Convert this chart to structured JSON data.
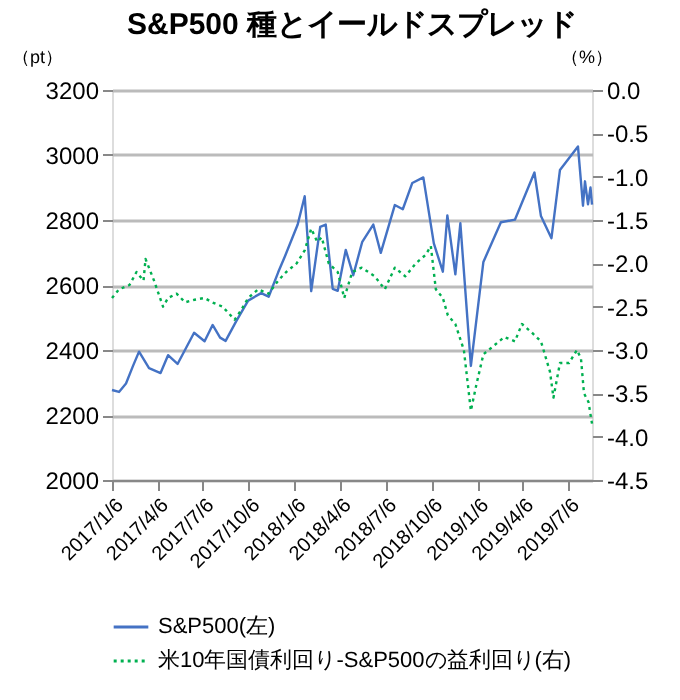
{
  "chart_data": {
    "type": "line",
    "title": "S&P500 種とイールドスプレッド",
    "ylabel": "（pt）",
    "y2label": "（%）",
    "xlim": [
      "2017-01-06",
      "2019-08-23"
    ],
    "xticks": [
      {
        "value": "2017-01-06",
        "label": "2017/1/6"
      },
      {
        "value": "2017-04-06",
        "label": "2017/4/6"
      },
      {
        "value": "2017-07-06",
        "label": "2017/7/6"
      },
      {
        "value": "2017-10-06",
        "label": "2017/10/6"
      },
      {
        "value": "2018-01-06",
        "label": "2018/1/6"
      },
      {
        "value": "2018-04-06",
        "label": "2018/4/6"
      },
      {
        "value": "2018-07-06",
        "label": "2018/7/6"
      },
      {
        "value": "2018-10-06",
        "label": "2018/10/6"
      },
      {
        "value": "2019-01-06",
        "label": "2019/1/6"
      },
      {
        "value": "2019-04-06",
        "label": "2019/4/6"
      },
      {
        "value": "2019-07-06",
        "label": "2019/7/6"
      }
    ],
    "ylim": [
      2000,
      3200
    ],
    "yticks": [
      2000,
      2200,
      2400,
      2600,
      2800,
      3000,
      3200
    ],
    "y2lim": [
      -4.5,
      0
    ],
    "y2ticks": [
      {
        "value": -4.5,
        "label": "-4.5"
      },
      {
        "value": -4,
        "label": "-4.0"
      },
      {
        "value": -3.5,
        "label": "-3.5"
      },
      {
        "value": -3,
        "label": "-3.0"
      },
      {
        "value": -2.5,
        "label": "-2.5"
      },
      {
        "value": -2,
        "label": "-2.0"
      },
      {
        "value": -1.5,
        "label": "-1.5"
      },
      {
        "value": -1,
        "label": "-1.0"
      },
      {
        "value": -0.5,
        "label": "-0.5"
      },
      {
        "value": 0,
        "label": "0.0"
      }
    ],
    "grid": "y",
    "legend": "bottom",
    "series": [
      {
        "name": "S&P500(左)",
        "color": "#4472c4",
        "line_style": "solid",
        "x": [
          "2017-01-06",
          "2017-01-20",
          "2017-02-03",
          "2017-02-17",
          "2017-03-01",
          "2017-03-21",
          "2017-04-13",
          "2017-04-28",
          "2017-05-17",
          "2017-06-19",
          "2017-07-10",
          "2017-07-26",
          "2017-08-10",
          "2017-08-21",
          "2017-09-11",
          "2017-10-05",
          "2017-10-31",
          "2017-11-15",
          "2017-12-04",
          "2017-12-18",
          "2018-01-12",
          "2018-01-26",
          "2018-02-08",
          "2018-02-26",
          "2018-03-09",
          "2018-03-23",
          "2018-04-02",
          "2018-04-18",
          "2018-05-03",
          "2018-05-21",
          "2018-06-12",
          "2018-06-27",
          "2018-07-25",
          "2018-08-10",
          "2018-08-29",
          "2018-09-20",
          "2018-10-11",
          "2018-10-29",
          "2018-11-07",
          "2018-11-23",
          "2018-12-03",
          "2018-12-24",
          "2019-01-18",
          "2019-02-22",
          "2019-03-22",
          "2019-04-30",
          "2019-05-13",
          "2019-06-03",
          "2019-06-20",
          "2019-07-26",
          "2019-08-05",
          "2019-08-09",
          "2019-08-15",
          "2019-08-20",
          "2019-08-23"
        ],
        "values": [
          2277,
          2271,
          2297,
          2351,
          2395,
          2344,
          2329,
          2384,
          2357,
          2453,
          2427,
          2477,
          2438,
          2428,
          2488,
          2552,
          2575,
          2564,
          2639,
          2690,
          2786,
          2873,
          2581,
          2779,
          2786,
          2588,
          2582,
          2708,
          2630,
          2733,
          2786,
          2699,
          2846,
          2833,
          2914,
          2931,
          2728,
          2641,
          2814,
          2633,
          2790,
          2351,
          2671,
          2793,
          2801,
          2946,
          2812,
          2744,
          2954,
          3026,
          2844,
          2919,
          2848,
          2900,
          2847
        ]
      },
      {
        "name": "米10年国債利回り-S&P500の益利回り(右)",
        "color": "#00b050",
        "line_style": "dotted",
        "axis": "y2",
        "x": [
          "2017-01-06",
          "2017-01-20",
          "2017-02-10",
          "2017-02-24",
          "2017-03-10",
          "2017-03-14",
          "2017-03-31",
          "2017-04-18",
          "2017-04-28",
          "2017-05-15",
          "2017-06-01",
          "2017-06-20",
          "2017-07-10",
          "2017-07-25",
          "2017-08-15",
          "2017-09-08",
          "2017-09-20",
          "2017-10-05",
          "2017-10-25",
          "2017-11-15",
          "2017-12-04",
          "2017-12-20",
          "2018-01-10",
          "2018-01-26",
          "2018-02-08",
          "2018-02-20",
          "2018-03-01",
          "2018-03-15",
          "2018-04-02",
          "2018-04-15",
          "2018-05-01",
          "2018-05-20",
          "2018-06-15",
          "2018-07-05",
          "2018-07-25",
          "2018-08-15",
          "2018-09-05",
          "2018-09-25",
          "2018-10-05",
          "2018-10-15",
          "2018-10-29",
          "2018-11-08",
          "2018-11-23",
          "2018-12-10",
          "2018-12-24",
          "2019-01-04",
          "2019-01-18",
          "2019-02-08",
          "2019-03-01",
          "2019-03-22",
          "2019-04-05",
          "2019-04-25",
          "2019-05-13",
          "2019-05-31",
          "2019-06-07",
          "2019-06-20",
          "2019-07-08",
          "2019-07-24",
          "2019-08-01",
          "2019-08-07",
          "2019-08-16",
          "2019-08-23"
        ],
        "values": [
          -2.4,
          -2.3,
          -2.25,
          -2.1,
          -2.2,
          -1.95,
          -2.2,
          -2.5,
          -2.4,
          -2.35,
          -2.45,
          -2.42,
          -2.4,
          -2.45,
          -2.5,
          -2.65,
          -2.55,
          -2.4,
          -2.3,
          -2.35,
          -2.2,
          -2.1,
          -2.0,
          -1.85,
          -1.6,
          -1.75,
          -1.7,
          -2.0,
          -2.1,
          -2.4,
          -2.1,
          -2.05,
          -2.15,
          -2.3,
          -2.05,
          -2.15,
          -2.0,
          -1.9,
          -1.8,
          -2.3,
          -2.4,
          -2.6,
          -2.7,
          -3.0,
          -3.7,
          -3.4,
          -3.05,
          -2.95,
          -2.85,
          -2.9,
          -2.7,
          -2.8,
          -2.9,
          -3.25,
          -3.55,
          -3.15,
          -3.15,
          -3.0,
          -3.1,
          -3.5,
          -3.6,
          -3.85
        ]
      }
    ]
  }
}
